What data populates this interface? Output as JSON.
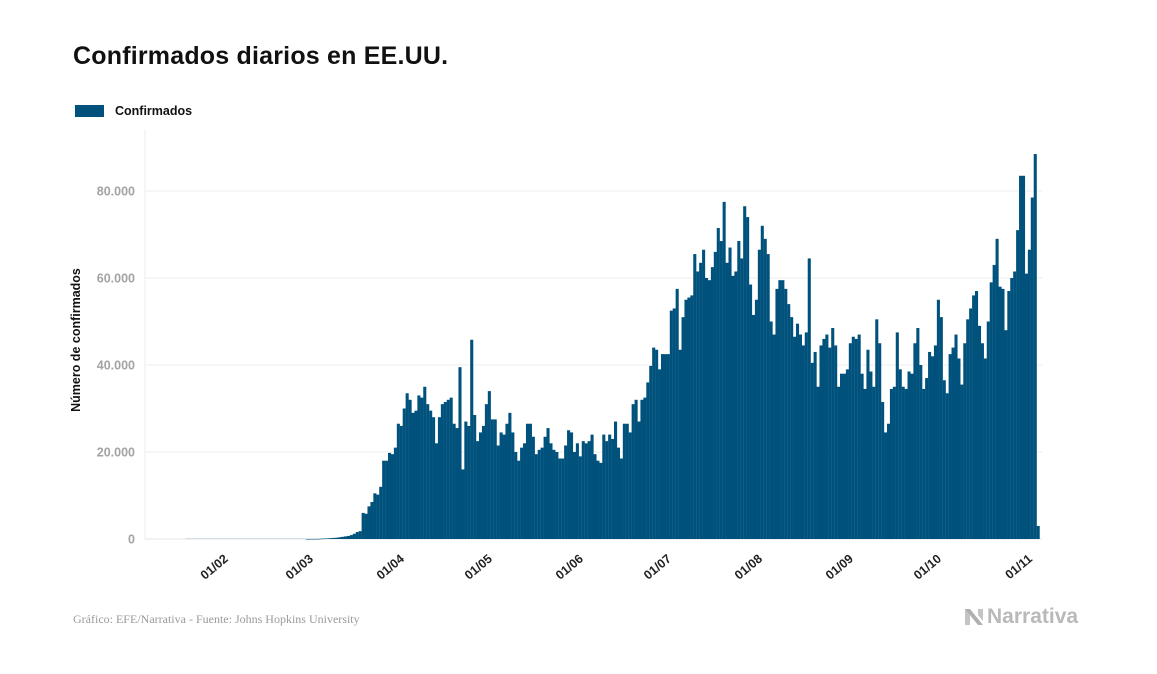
{
  "header": {
    "title": "Confirmados diarios en EE.UU."
  },
  "legend": {
    "items": [
      {
        "label": "Confirmados",
        "color": "#00527c"
      }
    ]
  },
  "footer": {
    "source": "Gráfico: EFE/Narrativa - Fuente: Johns Hopkins University",
    "logo_text": "Narrativa",
    "logo_icon": "narrativa-n-icon"
  },
  "chart_data": {
    "type": "bar",
    "title": "Confirmados diarios en EE.UU.",
    "xlabel": "",
    "ylabel": "Número de confirmados",
    "ylim": [
      0,
      90000
    ],
    "yticks": [
      0,
      20000,
      40000,
      60000,
      80000
    ],
    "ytick_labels": [
      "0",
      "20.000",
      "40.000",
      "60.000",
      "80.000"
    ],
    "xtick_labels": [
      "01/02",
      "01/03",
      "01/04",
      "01/05",
      "01/06",
      "01/07",
      "01/08",
      "01/09",
      "01/10",
      "01/11"
    ],
    "xtick_day_index": [
      10,
      39,
      70,
      100,
      131,
      161,
      192,
      223,
      253,
      284
    ],
    "start_date": "22/01",
    "grid": true,
    "legend_position": "top-left",
    "series": [
      {
        "name": "Confirmados",
        "color": "#00527c",
        "values": [
          0,
          0,
          0,
          0,
          0,
          0,
          0,
          0,
          0,
          0,
          0,
          0,
          0,
          0,
          0,
          0,
          0,
          0,
          0,
          0,
          0,
          0,
          0,
          0,
          0,
          0,
          0,
          0,
          0,
          0,
          0,
          0,
          0,
          0,
          0,
          0,
          0,
          0,
          0,
          0,
          0,
          10,
          20,
          20,
          30,
          50,
          100,
          120,
          150,
          200,
          250,
          300,
          400,
          500,
          600,
          700,
          900,
          1200,
          1600,
          1800,
          6000,
          5800,
          7500,
          8500,
          10500,
          10200,
          12000,
          18000,
          18000,
          19800,
          19500,
          21000,
          26500,
          26000,
          30000,
          33500,
          32000,
          29000,
          29500,
          33000,
          32500,
          35000,
          31000,
          29500,
          28000,
          22000,
          28000,
          31000,
          31500,
          32000,
          32500,
          26500,
          25500,
          39500,
          16000,
          27000,
          26000,
          45800,
          28500,
          22500,
          24500,
          26000,
          31000,
          34000,
          27500,
          27500,
          21500,
          24500,
          24000,
          26500,
          29000,
          24500,
          20000,
          18000,
          21000,
          22000,
          26500,
          26500,
          23500,
          19500,
          20500,
          21000,
          23500,
          25500,
          22000,
          20500,
          20000,
          18500,
          18500,
          21500,
          25000,
          24500,
          20000,
          22000,
          19000,
          22500,
          22000,
          22500,
          24000,
          19500,
          18000,
          17500,
          24000,
          22500,
          24000,
          23000,
          27000,
          21000,
          18500,
          26500,
          26500,
          24500,
          31000,
          32000,
          27000,
          32000,
          32500,
          36000,
          39800,
          44000,
          43500,
          39000,
          42500,
          42500,
          42500,
          52500,
          53000,
          57500,
          43500,
          51000,
          55000,
          55500,
          56000,
          65500,
          61500,
          63500,
          66500,
          60000,
          59500,
          62500,
          66000,
          71500,
          68500,
          77500,
          63500,
          67000,
          60500,
          61500,
          68500,
          64500,
          76500,
          74000,
          58500,
          51500,
          55000,
          66500,
          72000,
          69000,
          65500,
          50000,
          47000,
          57500,
          59500,
          59500,
          57500,
          54000,
          51000,
          46500,
          49500,
          47000,
          44500,
          47500,
          64500,
          40500,
          43000,
          35000,
          44500,
          46000,
          47000,
          44000,
          48500,
          44500,
          35000,
          38000,
          38000,
          39000,
          45000,
          46500,
          46000,
          47000,
          38000,
          34500,
          43500,
          38500,
          35000,
          50500,
          45000,
          31500,
          24500,
          26500,
          34500,
          35000,
          47500,
          39000,
          35000,
          34500,
          38500,
          38000,
          45000,
          48500,
          40000,
          34500,
          37000,
          43000,
          42000,
          44500,
          55000,
          51000,
          36500,
          33500,
          42500,
          44000,
          47000,
          41500,
          35500,
          45000,
          50500,
          53000,
          56000,
          57000,
          49000,
          45000,
          41500,
          50000,
          59000,
          63000,
          69000,
          58000,
          57500,
          48000,
          57000,
          60000,
          61500,
          71000,
          83500,
          83500,
          61000,
          66500,
          78500,
          88500,
          3000
        ]
      }
    ]
  }
}
